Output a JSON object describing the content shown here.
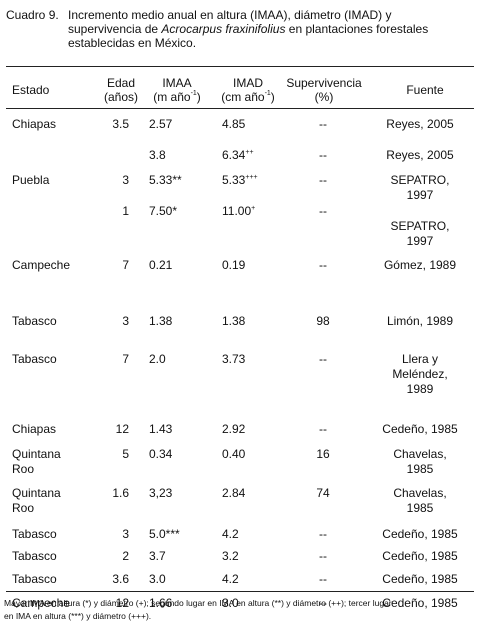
{
  "caption": {
    "label": "Cuadro 9.",
    "lines": [
      "Incremento medio anual en altura (IMAA), diámetro (IMAD) y",
      "supervivencia de Acrocarpus fraxinifolius en plantaciones forestales",
      "establecidas en México."
    ],
    "italic_term": "Acrocarpus fraxinifolius"
  },
  "headers": {
    "estado": "Estado",
    "edad_1": "Edad",
    "edad_2": "(años)",
    "imaa_1": "IMAA",
    "imaa_2": "(m año",
    "imaa_sup": "-1",
    "imaa_3": ")",
    "imad_1": "IMAD",
    "imad_2": "(cm año",
    "imad_sup": "-1",
    "imad_3": ")",
    "surv_1": "Supervivencia",
    "surv_2": "(%)",
    "fuente": "Fuente"
  },
  "rows": [
    {
      "estado": [
        "Chiapas"
      ],
      "edad": "3.5",
      "imaa": "2.57",
      "imaa_sup": "",
      "imad": "4.85",
      "imad_sup": "",
      "surv": "--",
      "fuente": [
        "Reyes, 2005"
      ]
    },
    {
      "estado": [
        ""
      ],
      "edad": "",
      "imaa": "3.8",
      "imaa_sup": "",
      "imad": "6.34",
      "imad_sup": "++",
      "surv": "--",
      "fuente": [
        "Reyes, 2005"
      ]
    },
    {
      "estado": [
        "Puebla"
      ],
      "edad": "3",
      "imaa": "5.33**",
      "imaa_sup": "",
      "imad": "5.33",
      "imad_sup": "+++",
      "surv": "--",
      "fuente": [
        "SEPATRO,",
        "1997"
      ]
    },
    {
      "estado": [
        ""
      ],
      "edad": "1",
      "imaa": "7.50*",
      "imaa_sup": "",
      "imad": "11.00",
      "imad_sup": "+",
      "surv": "--",
      "fuente": [
        "",
        "SEPATRO,",
        "1997"
      ]
    },
    {
      "estado": [
        "Campeche"
      ],
      "edad": "7",
      "imaa": "0.21",
      "imaa_sup": "",
      "imad": "0.19",
      "imad_sup": "",
      "surv": "--",
      "fuente": [
        "Gómez, 1989"
      ]
    },
    {
      "estado": [
        "Tabasco"
      ],
      "edad": "3",
      "imaa": "1.38",
      "imaa_sup": "",
      "imad": "1.38",
      "imad_sup": "",
      "surv": "98",
      "fuente": [
        "Limón, 1989"
      ]
    },
    {
      "estado": [
        "Tabasco"
      ],
      "edad": "7",
      "imaa": "2.0",
      "imaa_sup": "",
      "imad": "3.73",
      "imad_sup": "",
      "surv": "--",
      "fuente": [
        "Llera y",
        "Meléndez,",
        "1989"
      ]
    },
    {
      "estado": [
        "Chiapas"
      ],
      "edad": "12",
      "imaa": "1.43",
      "imaa_sup": "",
      "imad": "2.92",
      "imad_sup": "",
      "surv": "--",
      "fuente": [
        "Cedeño, 1985"
      ]
    },
    {
      "estado": [
        "Quintana",
        "Roo"
      ],
      "edad": "5",
      "imaa": "0.34",
      "imaa_sup": "",
      "imad": "0.40",
      "imad_sup": "",
      "surv": "16",
      "fuente": [
        "Chavelas,",
        "1985"
      ]
    },
    {
      "estado": [
        "Quintana",
        "Roo"
      ],
      "edad": "1.6",
      "imaa": "3,23",
      "imaa_sup": "",
      "imad": "2.84",
      "imad_sup": "",
      "surv": "74",
      "fuente": [
        "Chavelas,",
        "1985"
      ]
    },
    {
      "estado": [
        "Tabasco"
      ],
      "edad": "3",
      "imaa": "5.0***",
      "imaa_sup": "",
      "imad": "4.2",
      "imad_sup": "",
      "surv": "--",
      "fuente": [
        "Cedeño, 1985"
      ]
    },
    {
      "estado": [
        "Tabasco"
      ],
      "edad": "2",
      "imaa": "3.7",
      "imaa_sup": "",
      "imad": "3.2",
      "imad_sup": "",
      "surv": "--",
      "fuente": [
        "Cedeño, 1985"
      ]
    },
    {
      "estado": [
        "Tabasco"
      ],
      "edad": "3.6",
      "imaa": "3.0",
      "imaa_sup": "",
      "imad": "4.2",
      "imad_sup": "",
      "surv": "--",
      "fuente": [
        "Cedeño, 1985"
      ]
    },
    {
      "estado": [
        "Campeche"
      ],
      "edad": "12",
      "imaa": "1.66",
      "imaa_sup": "",
      "imad": "3.0",
      "imad_sup": "",
      "surv": "--",
      "fuente": [
        "Cedeño, 1985"
      ]
    }
  ],
  "footnote": {
    "lines": [
      "Mayor IMA en altura (*) y diámetro (+); segundo lugar en IMA en altura (**) y diámetro (++); tercer lugar",
      "en IMA en altura (***) y diámetro (+++)."
    ]
  }
}
